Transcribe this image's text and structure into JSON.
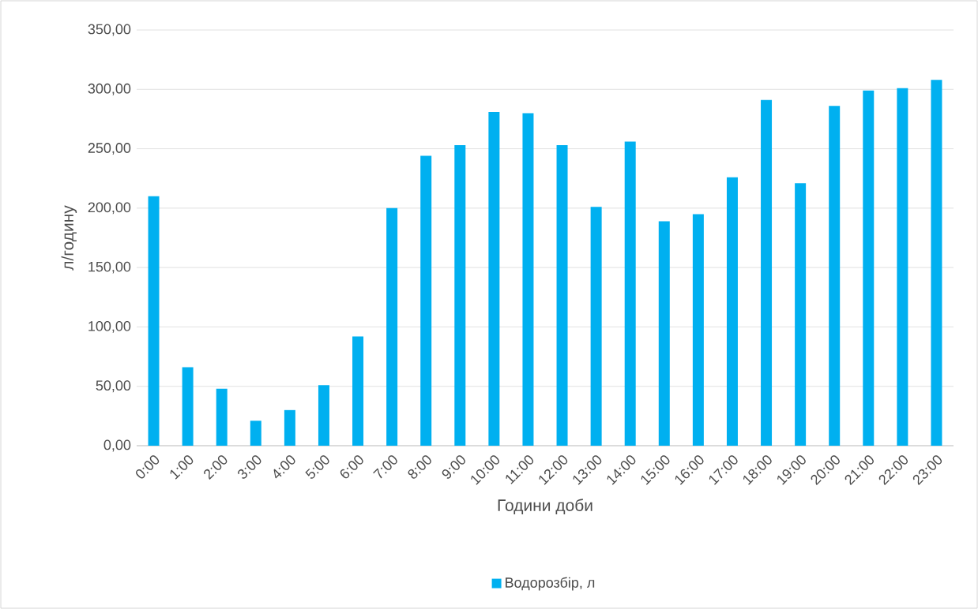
{
  "chart_data": {
    "type": "bar",
    "categories": [
      "0:00",
      "1:00",
      "2:00",
      "3:00",
      "4:00",
      "5:00",
      "6:00",
      "7:00",
      "8:00",
      "9:00",
      "10:00",
      "11:00",
      "12:00",
      "13:00",
      "14:00",
      "15:00",
      "16:00",
      "17:00",
      "18:00",
      "19:00",
      "20:00",
      "21:00",
      "22:00",
      "23:00"
    ],
    "series": [
      {
        "name": "Водорозбір, л",
        "color": "#00b0f0",
        "values": [
          210,
          66,
          48,
          21,
          30,
          51,
          92,
          200,
          244,
          253,
          281,
          280,
          253,
          201,
          256,
          189,
          195,
          226,
          291,
          221,
          286,
          299,
          301,
          308
        ]
      }
    ],
    "xlabel": "Години доби",
    "ylabel": "л/годину",
    "ylim": [
      0,
      350
    ],
    "yticks": [
      {
        "value": 0,
        "label": "0,00"
      },
      {
        "value": 50,
        "label": "50,00"
      },
      {
        "value": 100,
        "label": "100,00"
      },
      {
        "value": 150,
        "label": "150,00"
      },
      {
        "value": 200,
        "label": "200,00"
      },
      {
        "value": 250,
        "label": "250,00"
      },
      {
        "value": 300,
        "label": "300,00"
      },
      {
        "value": 350,
        "label": "350,00"
      }
    ],
    "grid": "y",
    "legend": "bottom"
  }
}
